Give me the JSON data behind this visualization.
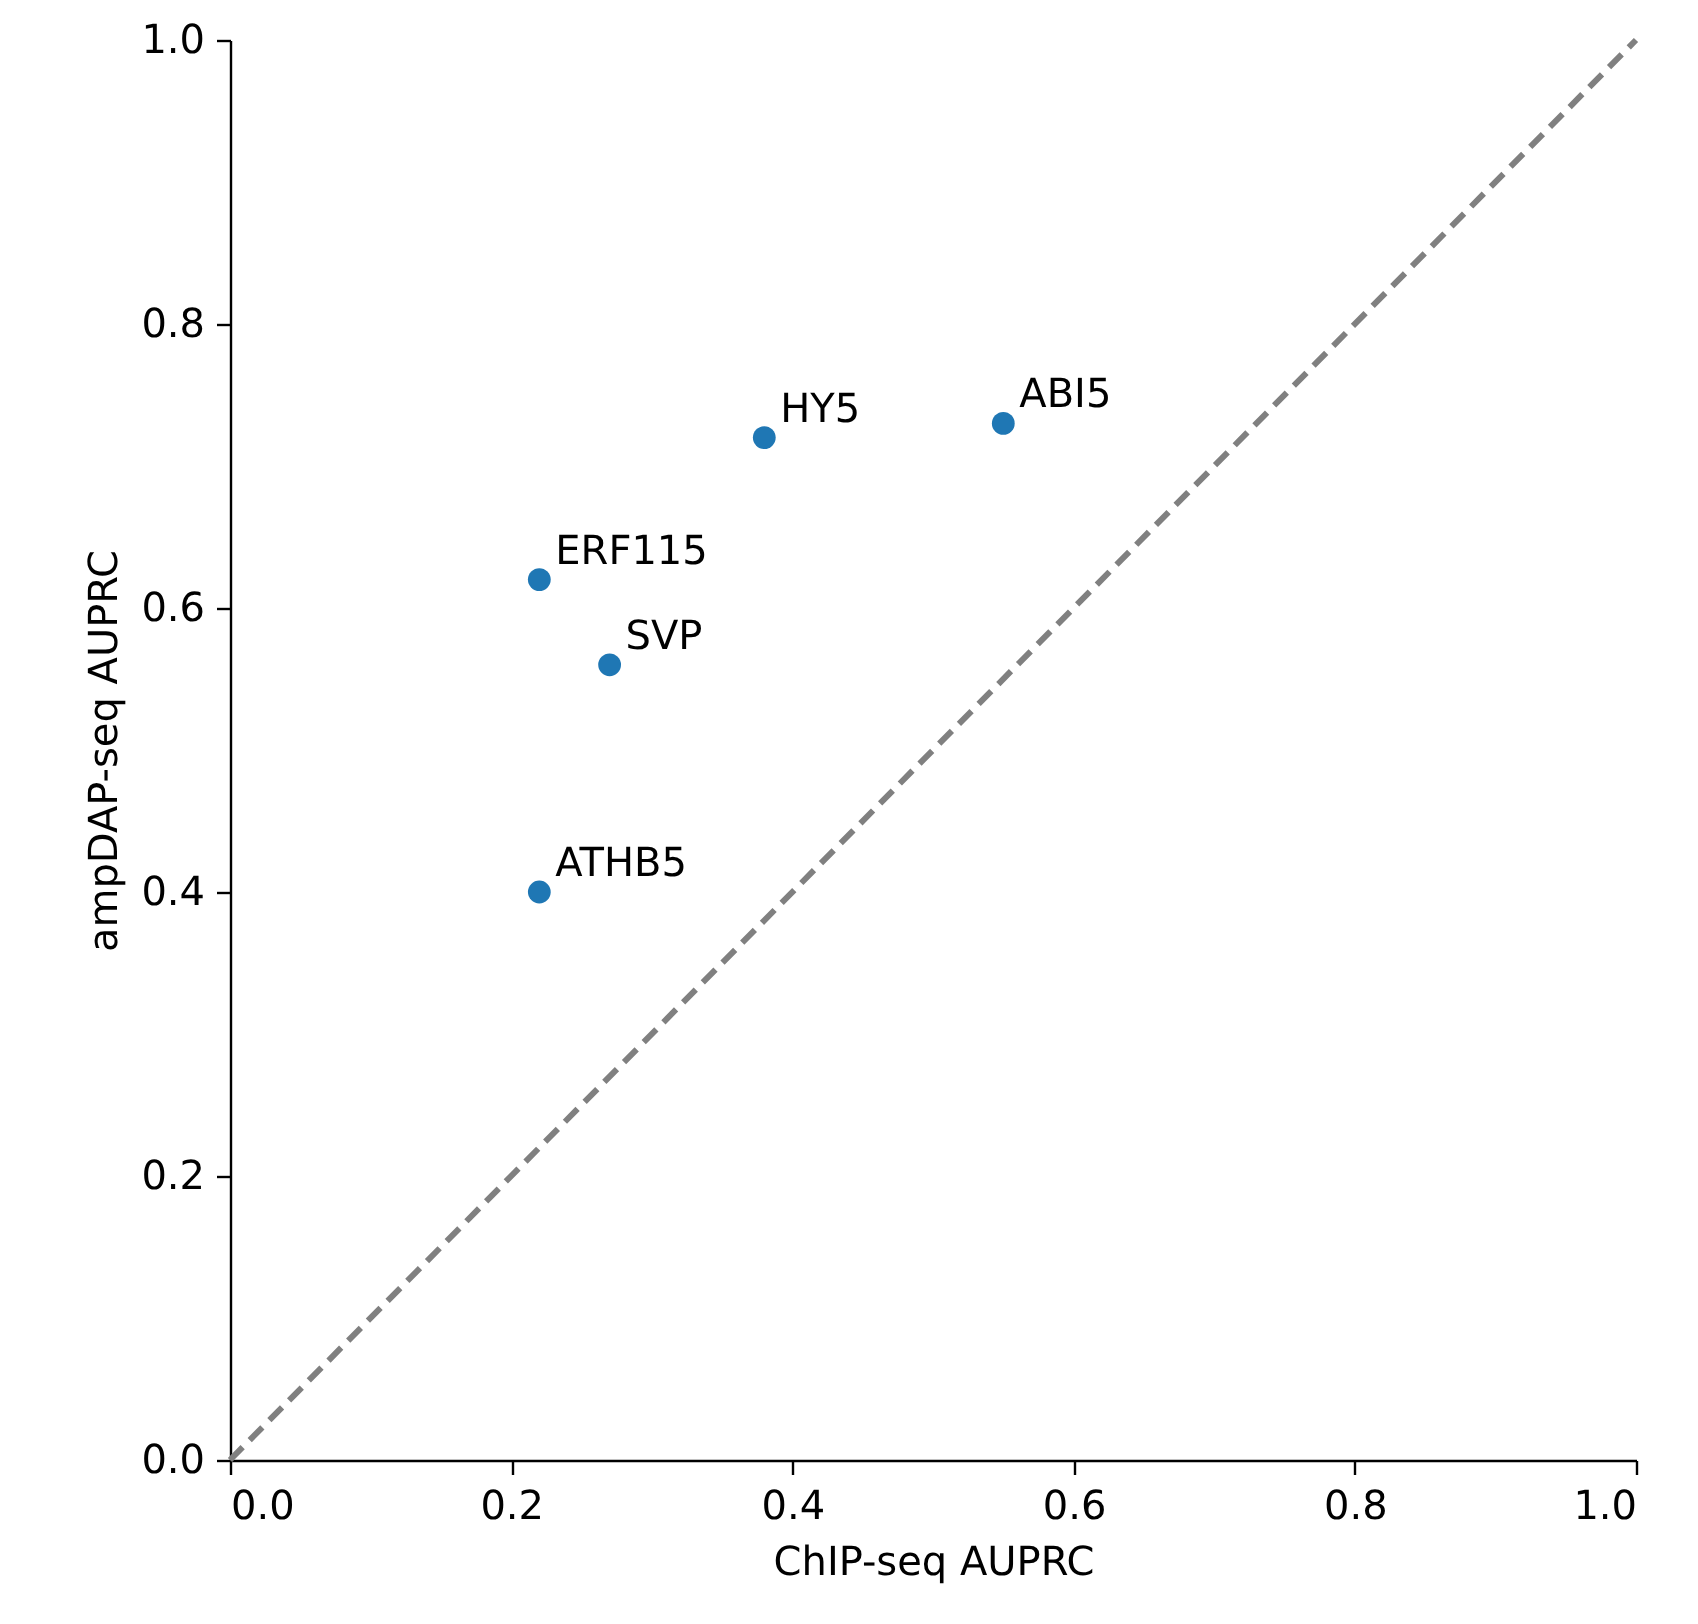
{
  "chart_data": {
    "type": "scatter",
    "xlabel": "ChIP-seq AUPRC",
    "ylabel": "ampDAP-seq AUPRC",
    "xlim": [
      0,
      1
    ],
    "ylim": [
      0,
      1
    ],
    "xticks": [
      {
        "value": 0,
        "label": "0.0"
      },
      0.2,
      0.4,
      0.6,
      0.8,
      {
        "value": 1,
        "label": "1.0"
      }
    ],
    "yticks": [
      {
        "value": 0,
        "label": "0.0"
      },
      0.2,
      0.4,
      0.6,
      0.8,
      {
        "value": 1,
        "label": "1.0"
      }
    ],
    "grid": false,
    "marker": "circle",
    "series": [
      {
        "color": "#1f77b4",
        "x": [
          0.22,
          0.27,
          0.38,
          0.55,
          0.22
        ],
        "values": [
          0.62,
          0.56,
          0.72,
          0.73,
          0.4
        ]
      },
      {
        "type": "line",
        "color": "#808080",
        "line_style": "dashed",
        "marker": "none",
        "x": [
          0,
          1
        ],
        "values": [
          0,
          1
        ]
      }
    ],
    "annotations": [
      {
        "text": "ERF115",
        "x": 0.22,
        "y": 0.62
      },
      {
        "text": "SVP",
        "x": 0.27,
        "y": 0.56
      },
      {
        "text": "HY5",
        "x": 0.38,
        "y": 0.72
      },
      {
        "text": "ABI5",
        "x": 0.55,
        "y": 0.73
      },
      {
        "text": "ATHB5",
        "x": 0.22,
        "y": 0.4
      }
    ]
  }
}
